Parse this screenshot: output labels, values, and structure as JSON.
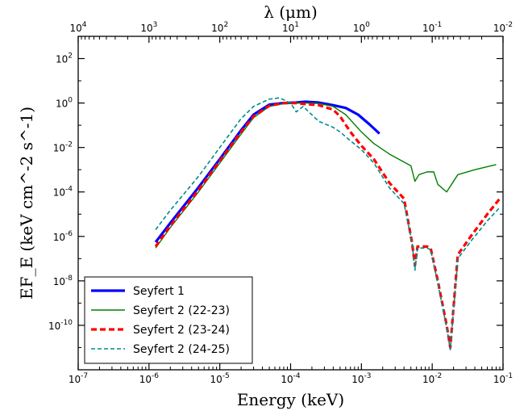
{
  "chart_data": {
    "type": "line",
    "title": "",
    "xlabel": "Energy (keV)",
    "ylabel": "EF_E (keV cm^-2 s^-1)",
    "top_xlabel": "λ (μm)",
    "x_scale": "log",
    "y_scale": "log",
    "xlim": [
      1e-07,
      0.1
    ],
    "ylim": [
      1e-12,
      1000
    ],
    "top_axis_range_um": [
      10000,
      0.01
    ],
    "x_ticks": [
      {
        "value": 1e-07,
        "base": "10",
        "exp": "-7"
      },
      {
        "value": 1e-06,
        "base": "10",
        "exp": "-6"
      },
      {
        "value": 1e-05,
        "base": "10",
        "exp": "-5"
      },
      {
        "value": 0.0001,
        "base": "10",
        "exp": "-4"
      },
      {
        "value": 0.001,
        "base": "10",
        "exp": "-3"
      },
      {
        "value": 0.01,
        "base": "10",
        "exp": "-2"
      },
      {
        "value": 0.1,
        "base": "10",
        "exp": "-1"
      }
    ],
    "y_ticks": [
      {
        "value": 100.0,
        "base": "10",
        "exp": "2"
      },
      {
        "value": 1.0,
        "base": "10",
        "exp": "0"
      },
      {
        "value": 0.01,
        "base": "10",
        "exp": "-2"
      },
      {
        "value": 0.0001,
        "base": "10",
        "exp": "-4"
      },
      {
        "value": 1e-06,
        "base": "10",
        "exp": "-6"
      },
      {
        "value": 1e-08,
        "base": "10",
        "exp": "-8"
      },
      {
        "value": 1e-10,
        "base": "10",
        "exp": "-10"
      }
    ],
    "top_ticks_um": [
      {
        "value": 10000.0,
        "base": "10",
        "exp": "4"
      },
      {
        "value": 1000.0,
        "base": "10",
        "exp": "3"
      },
      {
        "value": 100.0,
        "base": "10",
        "exp": "2"
      },
      {
        "value": 10.0,
        "base": "10",
        "exp": "1"
      },
      {
        "value": 1.0,
        "base": "10",
        "exp": "0"
      },
      {
        "value": 0.1,
        "base": "10",
        "exp": "-1"
      },
      {
        "value": 0.01,
        "base": "10",
        "exp": "-2"
      }
    ],
    "grid": false,
    "legend_position": "bottom-left",
    "series": [
      {
        "name": "Seyfert 1",
        "color": "#0000ff",
        "style": "solid",
        "x": [
          1.24e-06,
          2e-06,
          5e-06,
          1e-05,
          2e-05,
          3e-05,
          5e-05,
          8e-05,
          0.00012,
          0.00016,
          0.00025,
          0.0004,
          0.0006,
          0.0009,
          0.0013,
          0.0018
        ],
        "y": [
          5.5e-07,
          4e-06,
          0.00016,
          0.003,
          0.06,
          0.3,
          0.85,
          1.0,
          1.05,
          1.15,
          1.05,
          0.8,
          0.6,
          0.3,
          0.11,
          0.042
        ]
      },
      {
        "name": "Seyfert 2 (22-23)",
        "color": "#008000",
        "style": "solid",
        "x": [
          1.24e-06,
          2e-06,
          5e-06,
          1e-05,
          2e-05,
          3e-05,
          5e-05,
          8e-05,
          0.00012,
          0.00016,
          0.00025,
          0.0004,
          0.0006,
          0.001,
          0.0015,
          0.0025,
          0.005,
          0.0057,
          0.0065,
          0.0085,
          0.0105,
          0.012,
          0.016,
          0.023,
          0.04,
          0.08
        ],
        "y": [
          3e-07,
          2.5e-06,
          0.0001,
          0.002,
          0.04,
          0.22,
          0.7,
          0.95,
          1.0,
          1.0,
          0.95,
          0.7,
          0.3,
          0.05,
          0.015,
          0.005,
          0.0015,
          0.0003,
          0.0006,
          0.0008,
          0.0008,
          0.00022,
          0.0001,
          0.0006,
          0.001,
          0.0017
        ]
      },
      {
        "name": "Seyfert 2 (23-24)",
        "color": "#ff0000",
        "style": "dashed",
        "x": [
          1.24e-06,
          2e-06,
          5e-06,
          1e-05,
          2e-05,
          3e-05,
          5e-05,
          8e-05,
          0.00012,
          0.00016,
          0.00025,
          0.0004,
          0.0005,
          0.0007,
          0.001,
          0.0015,
          0.0025,
          0.004,
          0.0052,
          0.0057,
          0.0062,
          0.0085,
          0.0095,
          0.012,
          0.016,
          0.018,
          0.023,
          0.035,
          0.06,
          0.09
        ],
        "y": [
          3.5e-07,
          3e-06,
          0.00012,
          0.0025,
          0.05,
          0.25,
          0.75,
          1.0,
          1.0,
          0.9,
          0.8,
          0.5,
          0.25,
          0.05,
          0.012,
          0.003,
          0.00025,
          5e-05,
          5e-07,
          5e-08,
          3.5e-07,
          3.5e-07,
          3e-07,
          1e-08,
          1e-10,
          1e-11,
          1.5e-07,
          1e-06,
          1e-05,
          5e-05
        ]
      },
      {
        "name": "Seyfert 2 (24-25)",
        "color": "#008b8b",
        "style": "dashed",
        "x": [
          1.24e-06,
          2e-06,
          5e-06,
          1e-05,
          2e-05,
          3e-05,
          5e-05,
          7e-05,
          0.0001,
          0.00012,
          0.00015,
          0.00025,
          0.0004,
          0.0005,
          0.0007,
          0.001,
          0.0015,
          0.0025,
          0.004,
          0.0052,
          0.0057,
          0.0062,
          0.0085,
          0.0095,
          0.012,
          0.016,
          0.018,
          0.023,
          0.035,
          0.06,
          0.09
        ],
        "y": [
          2e-06,
          1.5e-05,
          0.0005,
          0.01,
          0.2,
          0.7,
          1.5,
          1.7,
          1.0,
          0.4,
          0.7,
          0.15,
          0.08,
          0.05,
          0.02,
          0.008,
          0.002,
          0.00015,
          3e-05,
          5e-07,
          3e-08,
          3e-07,
          3e-07,
          2.5e-07,
          8e-09,
          8e-11,
          8e-12,
          1e-07,
          6e-07,
          5e-06,
          2e-05
        ]
      }
    ]
  }
}
